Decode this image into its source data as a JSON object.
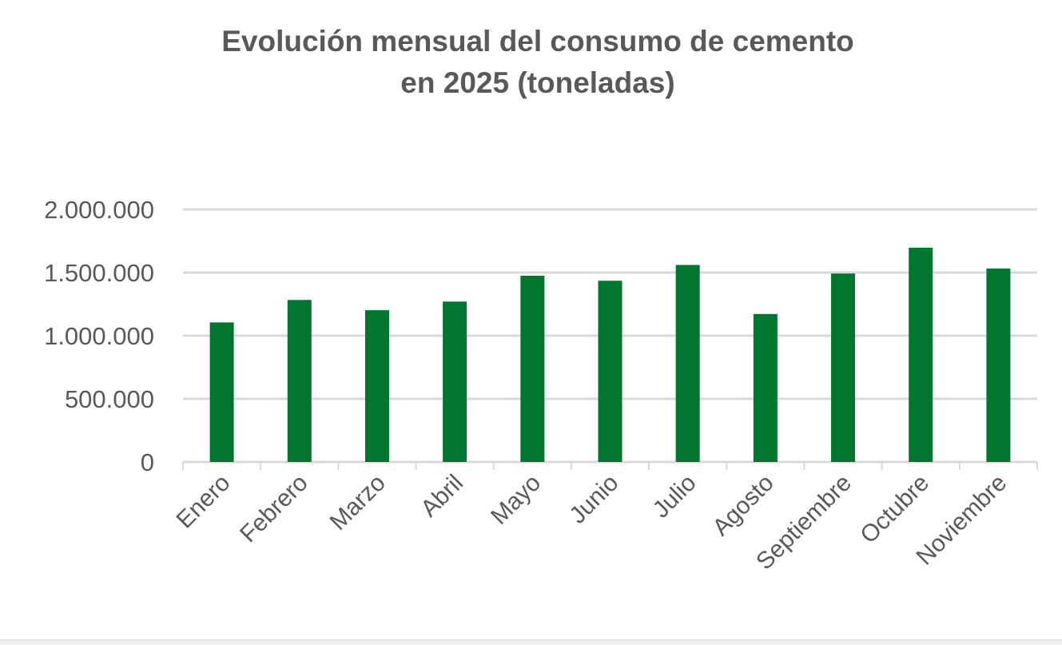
{
  "chart_data": {
    "type": "bar",
    "title_line1": "Evolución mensual del consumo de cemento",
    "title_line2": "en 2025 (toneladas)",
    "categories": [
      "Enero",
      "Febrero",
      "Marzo",
      "Abril",
      "Mayo",
      "Junio",
      "Julio",
      "Agosto",
      "Septiembre",
      "Octubre",
      "Noviembre"
    ],
    "values": [
      1105000,
      1283000,
      1202000,
      1270000,
      1475000,
      1435000,
      1560000,
      1172000,
      1492000,
      1697000,
      1532000
    ],
    "ylim": [
      0,
      2000000
    ],
    "yticks": [
      0,
      500000,
      1000000,
      1500000,
      2000000
    ],
    "ytick_labels": [
      "0",
      "500.000",
      "1.000.000",
      "1.500.000",
      "2.000.000"
    ],
    "grid": true,
    "legend": "none",
    "bar_color": "#00762E",
    "xlabel": "",
    "ylabel": ""
  }
}
